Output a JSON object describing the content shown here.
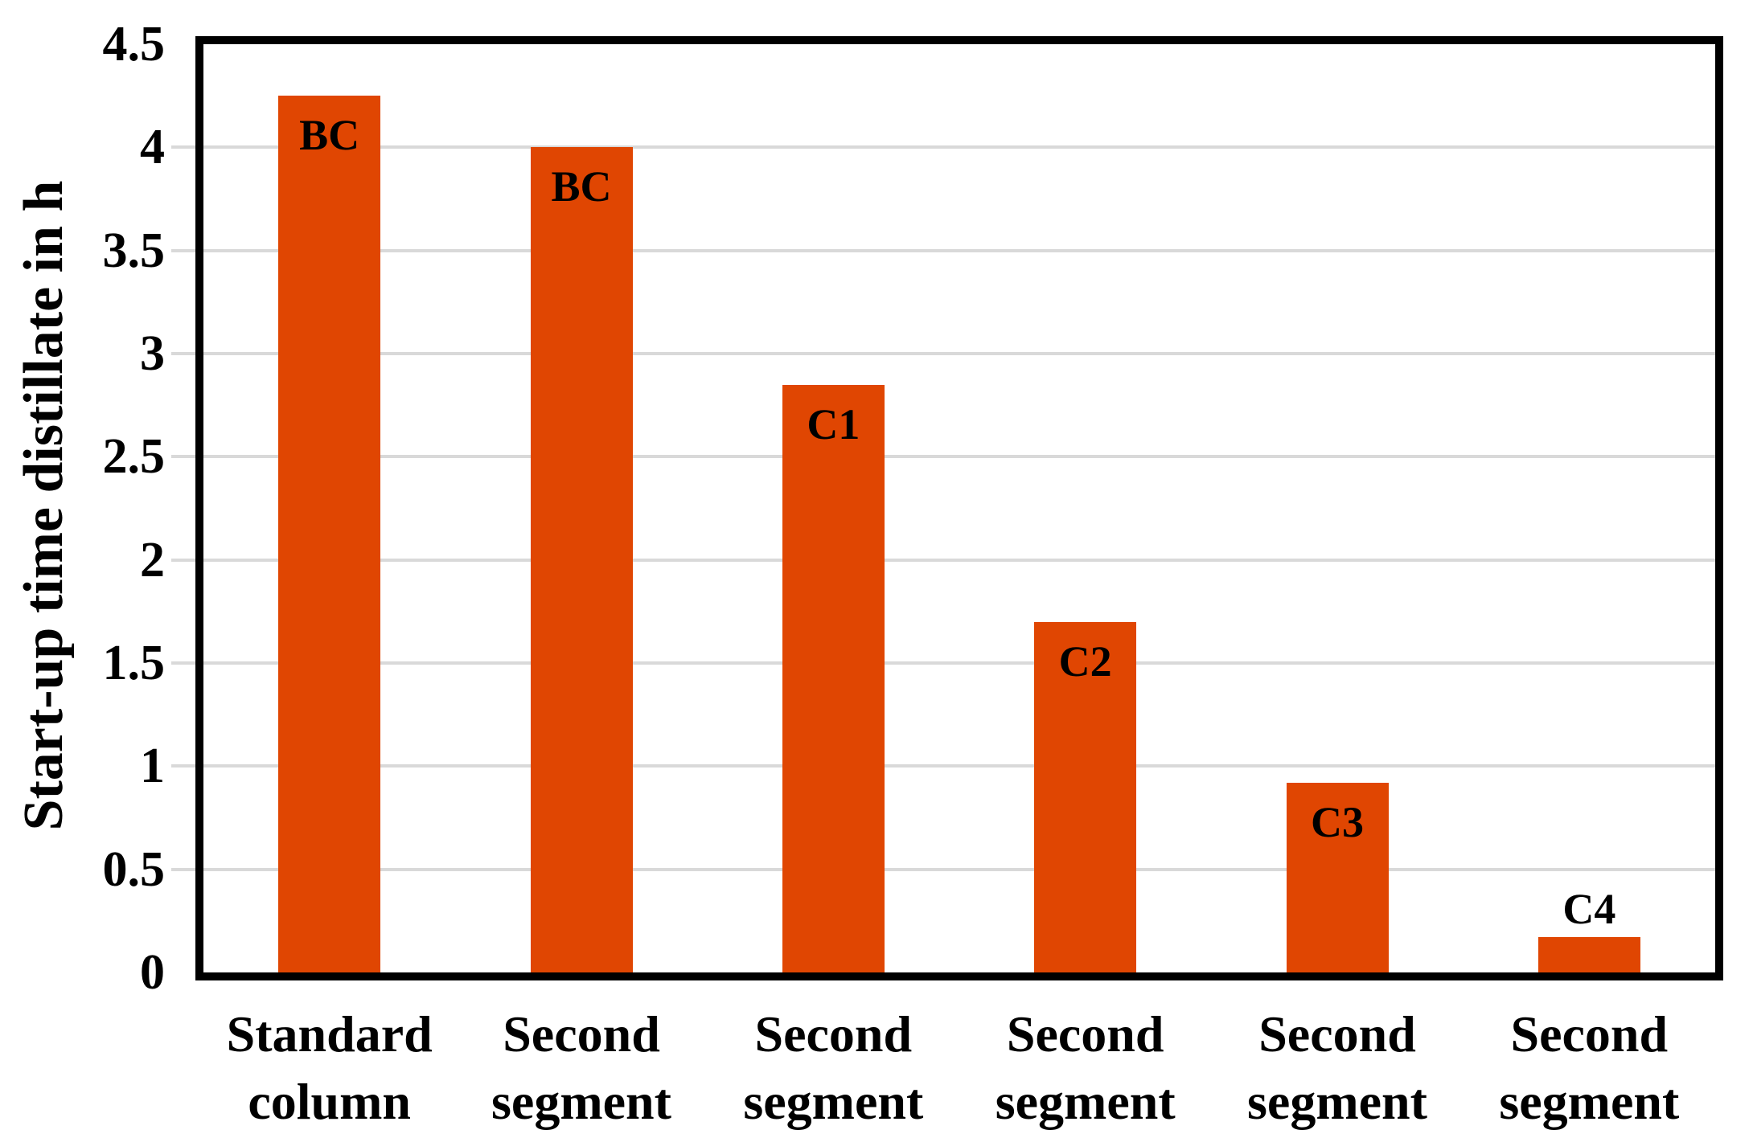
{
  "chart_data": {
    "type": "bar",
    "title": "",
    "xlabel": "",
    "ylabel": "Start-up time distillate in h",
    "ylim": [
      0,
      4.5
    ],
    "ytick_labels": [
      "0",
      "0.5",
      "1",
      "1.5",
      "2",
      "2.5",
      "3",
      "3.5",
      "4",
      "4.5"
    ],
    "ytick_values": [
      0,
      0.5,
      1,
      1.5,
      2,
      2.5,
      3,
      3.5,
      4,
      4.5
    ],
    "grid": "horizontal, every 0.5, light gray",
    "legend": "none",
    "bar_color": "#e04602",
    "grid_color": "#d9d9d9",
    "axis_color": "#000000",
    "categories": [
      {
        "line1": "Standard",
        "line2": "column"
      },
      {
        "line1": "Second",
        "line2": "segment"
      },
      {
        "line1": "Second",
        "line2": "segment"
      },
      {
        "line1": "Second",
        "line2": "segment"
      },
      {
        "line1": "Second",
        "line2": "segment"
      },
      {
        "line1": "Second",
        "line2": "segment"
      }
    ],
    "bars": [
      {
        "label": "BC",
        "value": 4.25,
        "label_position": "inside"
      },
      {
        "label": "BC",
        "value": 4.0,
        "label_position": "inside"
      },
      {
        "label": "C1",
        "value": 2.85,
        "label_position": "inside"
      },
      {
        "label": "C2",
        "value": 1.7,
        "label_position": "inside"
      },
      {
        "label": "C3",
        "value": 0.92,
        "label_position": "inside"
      },
      {
        "label": "C4",
        "value": 0.17,
        "label_position": "above"
      }
    ]
  }
}
